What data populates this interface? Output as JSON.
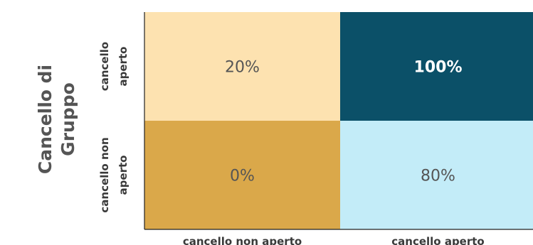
{
  "chart_data": {
    "type": "heatmap",
    "ylabel": "Cancello di Gruppo",
    "rows": [
      "cancello aperto",
      "cancello non aperto"
    ],
    "columns": [
      "cancello non aperto",
      "cancello aperto"
    ],
    "values": [
      [
        20,
        100
      ],
      [
        0,
        80
      ]
    ],
    "cell_labels": [
      [
        "20%",
        "100%"
      ],
      [
        "0%",
        "80%"
      ]
    ],
    "cell_colors": [
      [
        "#fde2b0",
        "#0b5068"
      ],
      [
        "#daa84a",
        "#c3ecf8"
      ]
    ],
    "cell_text_colors": [
      [
        "#555555",
        "#ffffff"
      ],
      [
        "#555555",
        "#555555"
      ]
    ],
    "bold_cells": [
      [
        false,
        true
      ],
      [
        false,
        false
      ]
    ]
  }
}
